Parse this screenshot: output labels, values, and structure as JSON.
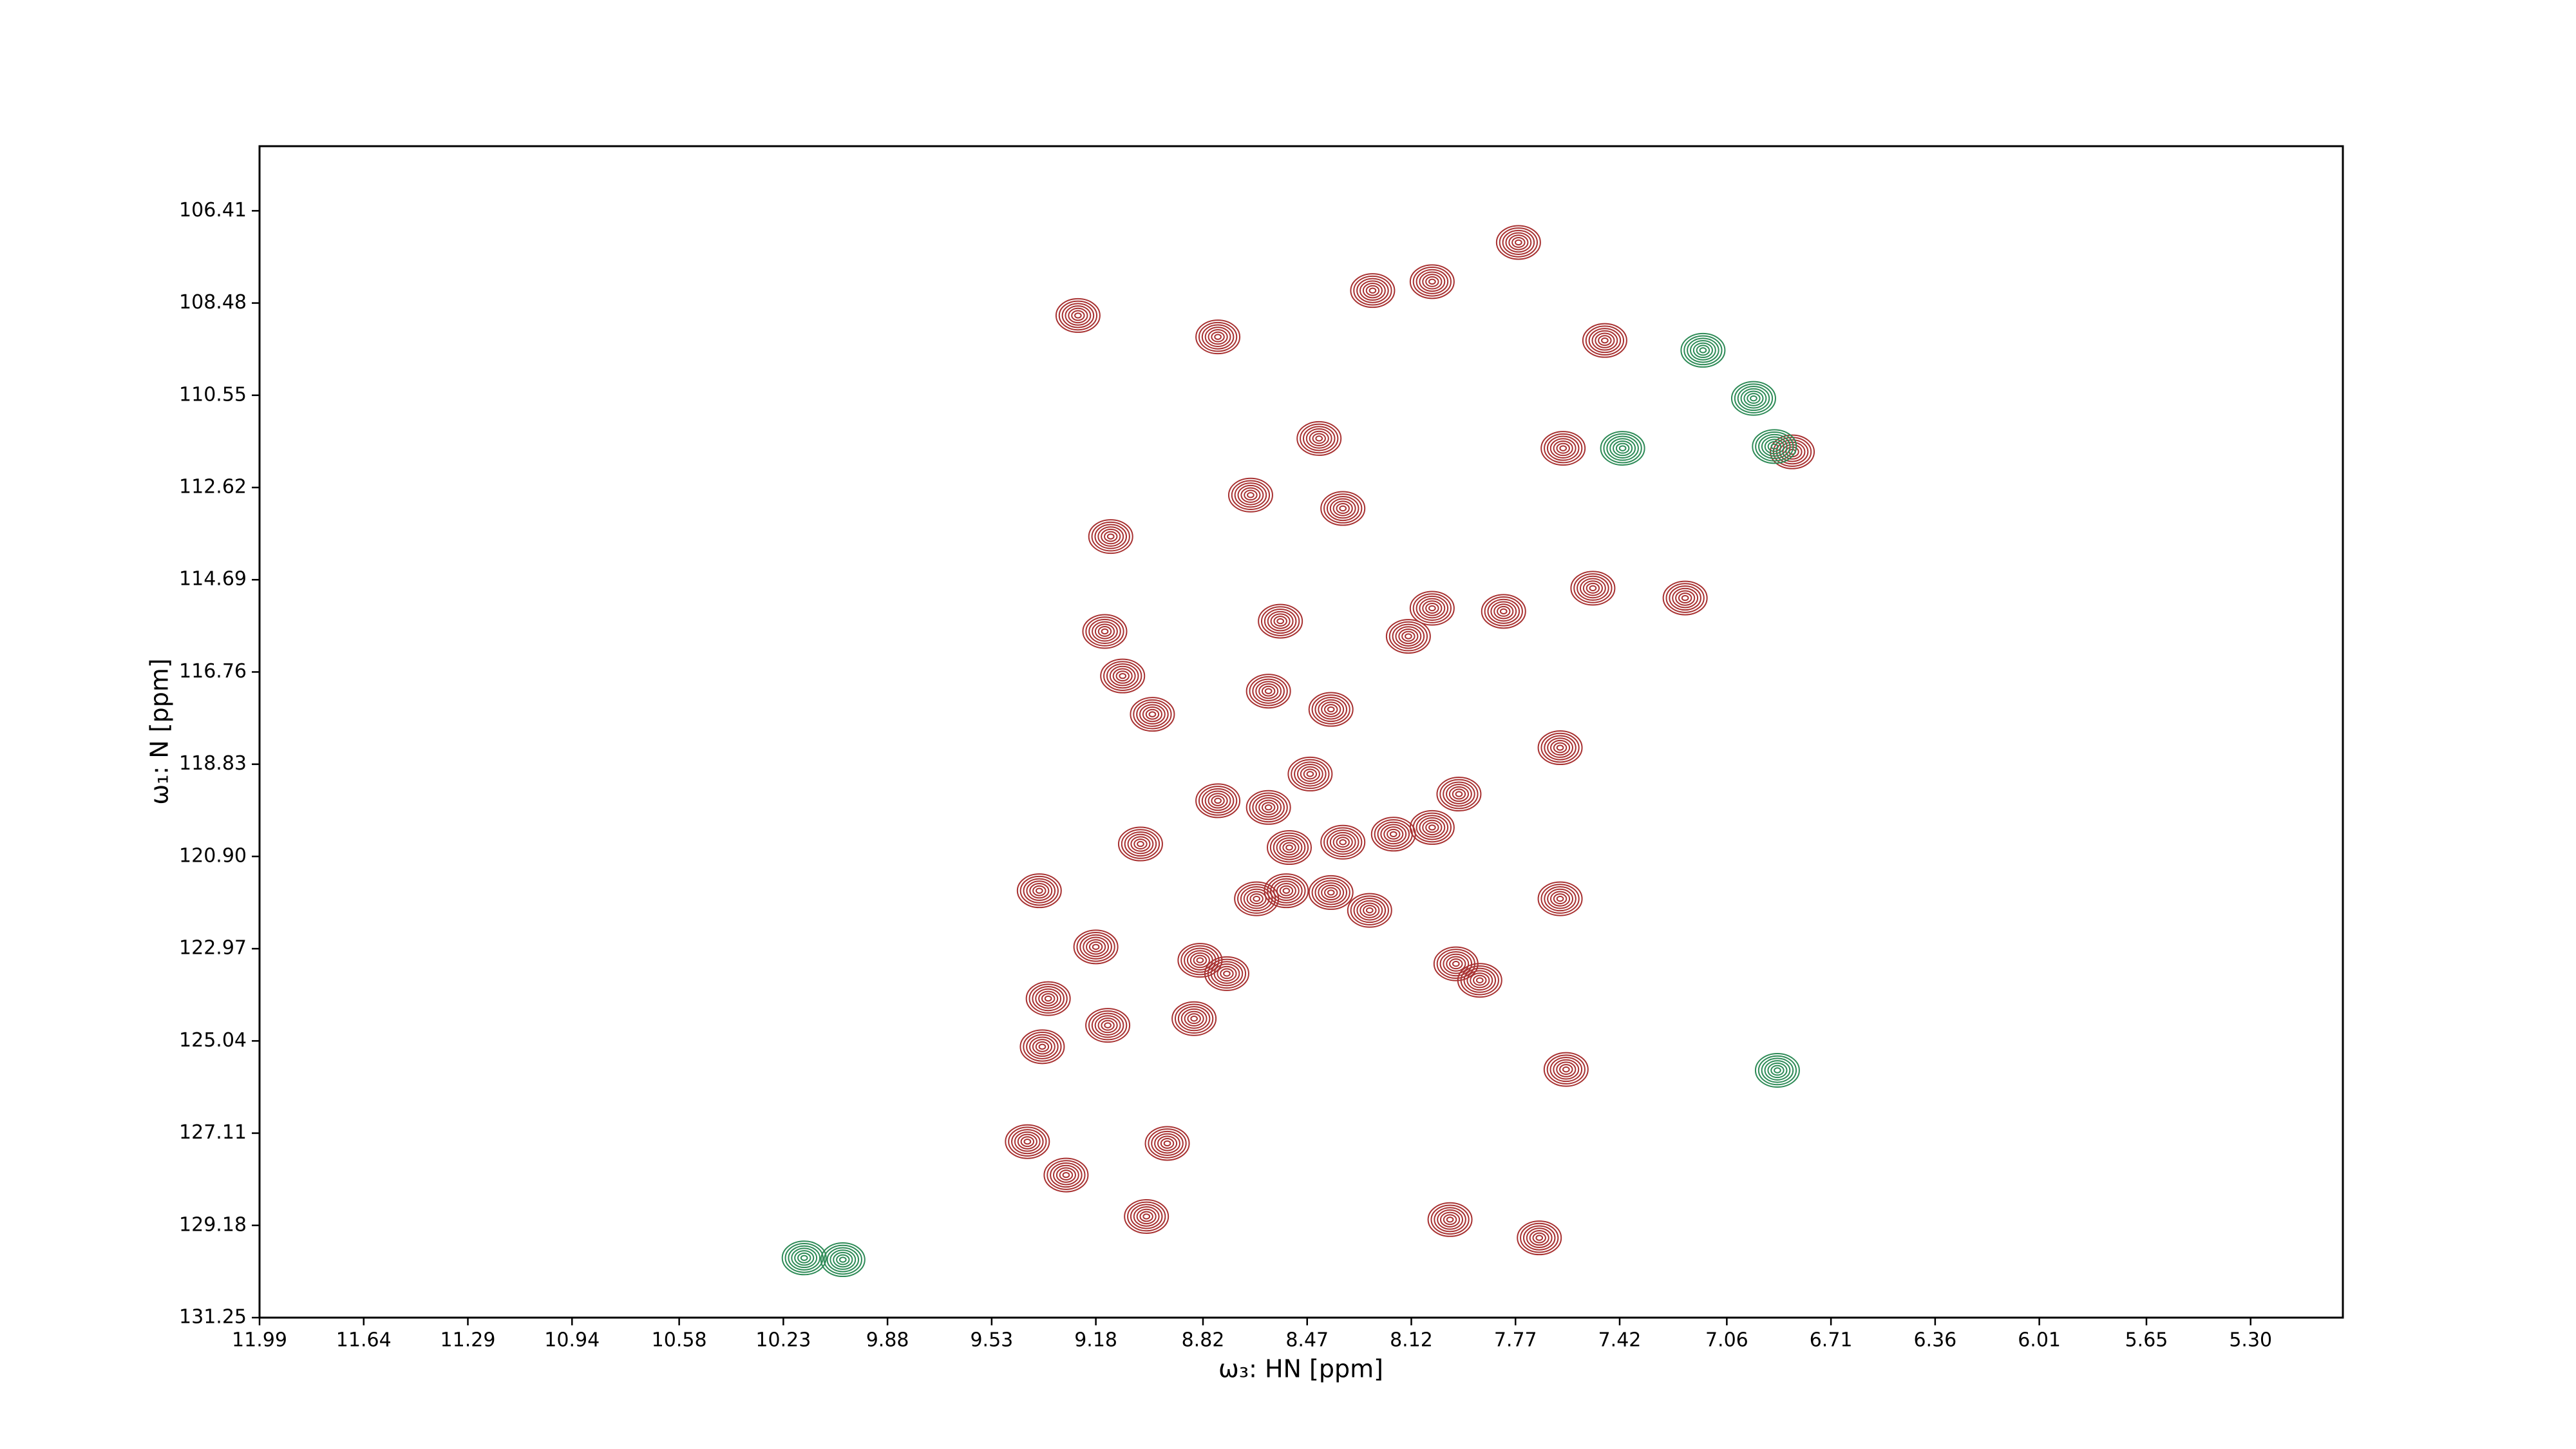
{
  "chart_data": {
    "type": "contour",
    "xlabel": "ω₃: HN [ppm]",
    "ylabel": "ω₁: N [ppm]",
    "xlim": [
      11.99,
      4.99
    ],
    "ylim": [
      131.25,
      104.96
    ],
    "xticks": [
      11.99,
      11.64,
      11.29,
      10.94,
      10.58,
      10.23,
      9.88,
      9.53,
      9.18,
      8.82,
      8.47,
      8.12,
      7.77,
      7.42,
      7.06,
      6.71,
      6.36,
      6.01,
      5.65,
      {
        "value": 5.3,
        "label": "5.30"
      }
    ],
    "yticks": [
      106.41,
      108.48,
      {
        "value": 110.55,
        "label": "110.55"
      },
      112.62,
      114.69,
      116.76,
      118.83,
      {
        "value": 120.9,
        "label": "120.90"
      },
      122.97,
      125.04,
      127.11,
      129.18,
      131.25
    ],
    "series": [
      {
        "color": "#a83232",
        "x": [
          9.24,
          8.77,
          8.25,
          8.05,
          7.76,
          7.47,
          8.43,
          8.66,
          8.35,
          9.13,
          7.61,
          6.84,
          7.51,
          7.2,
          7.81,
          8.05,
          8.13,
          8.56,
          9.15,
          9.09,
          8.99,
          8.6,
          8.39,
          7.62,
          8.46,
          8.77,
          8.6,
          7.96,
          9.03,
          8.53,
          8.35,
          8.18,
          8.05,
          9.37,
          8.64,
          8.54,
          8.39,
          8.26,
          7.62,
          9.18,
          8.83,
          8.74,
          7.97,
          7.89,
          9.34,
          9.36,
          9.14,
          8.85,
          8.94,
          9.28,
          9.01,
          7.99,
          7.69,
          9.41,
          7.6
        ],
        "y": [
          108.76,
          109.24,
          108.2,
          108.0,
          107.12,
          109.32,
          111.52,
          112.79,
          113.09,
          113.72,
          111.74,
          111.82,
          114.88,
          115.1,
          115.4,
          115.33,
          115.96,
          115.62,
          115.85,
          116.85,
          117.71,
          117.19,
          117.6,
          118.46,
          119.05,
          119.65,
          119.8,
          119.5,
          120.62,
          120.7,
          120.58,
          120.4,
          120.25,
          121.67,
          121.85,
          121.67,
          121.71,
          122.11,
          121.85,
          122.93,
          123.23,
          123.53,
          123.31,
          123.68,
          124.09,
          125.17,
          124.69,
          124.54,
          127.34,
          128.05,
          128.98,
          129.05,
          129.46,
          127.3,
          125.68
        ]
      },
      {
        "color": "#2e8b57",
        "x": [
          7.41,
          7.14,
          6.97,
          6.9,
          10.16,
          10.03,
          6.89
        ],
        "y": [
          111.74,
          109.54,
          110.62,
          111.7,
          129.91,
          129.95,
          125.7
        ]
      }
    ]
  }
}
